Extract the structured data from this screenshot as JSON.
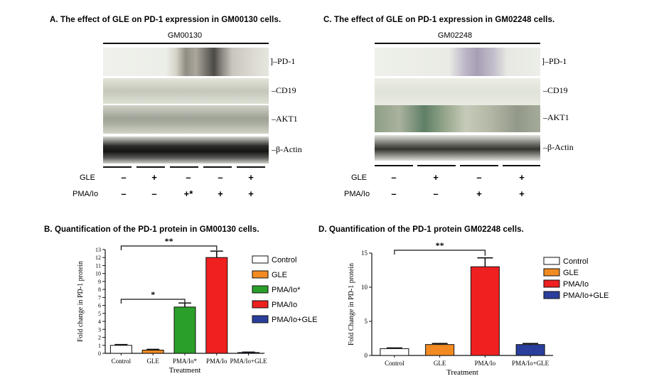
{
  "panels": {
    "a_title": "A. The effect of GLE on PD-1 expression in GM00130 cells.",
    "c_title": "C. The effect of GLE on PD-1 expression in GM02248 cells.",
    "b_title": "B. Quantification of the PD-1 protein in GM00130 cells.",
    "d_title": "D. Quantification of the PD-1 protein GM02248 cells."
  },
  "blot_a": {
    "cell_line": "GM00130",
    "bands": [
      "PD-1",
      "CD19",
      "AKT1",
      "β-Actin"
    ],
    "gle_label": "GLE",
    "pma_label": "PMA/Io",
    "gle_signs": [
      "–",
      "+",
      "–",
      "–",
      "+"
    ],
    "pma_signs": [
      "–",
      "–",
      "+*",
      "+",
      "+"
    ]
  },
  "blot_c": {
    "cell_line": "GM02248",
    "bands": [
      "PD-1",
      "CD19",
      "AKT1",
      "β-Actin"
    ],
    "gle_label": "GLE",
    "pma_label": "PMA/Io",
    "gle_signs": [
      "–",
      "+",
      "–",
      "+"
    ],
    "pma_signs": [
      "–",
      "–",
      "+",
      "+"
    ]
  },
  "colors": {
    "control": "#ffffff",
    "gle": "#f28a22",
    "pma_star": "#2aa02a",
    "pma": "#ee2020",
    "pma_gle": "#2a3f9c",
    "errorbar": "#111111"
  },
  "chart_data": [
    {
      "type": "bar",
      "title": "B. Quantification of the PD-1 protein in GM00130 cells.",
      "xlabel": "Treatment",
      "ylabel": "Fold change in PD-1 protein",
      "categories": [
        "Control",
        "GLE",
        "PMA/Io*",
        "PMA/Io",
        "PMA/Io+GLE"
      ],
      "values": [
        1.0,
        0.4,
        5.8,
        12.0,
        0.1
      ],
      "errors": [
        0.1,
        0.1,
        0.5,
        0.8,
        0.05
      ],
      "colors": [
        "#ffffff",
        "#f28a22",
        "#2aa02a",
        "#ee2020",
        "#2a3f9c"
      ],
      "ylim": [
        0,
        13
      ],
      "yticks": [
        "0",
        "1",
        "2",
        "3",
        "4",
        "5",
        "6",
        "7",
        "8",
        "9",
        "10",
        "11",
        "12",
        "13"
      ],
      "legend": [
        "Control",
        "GLE",
        "PMA/Io*",
        "PMA/Io",
        "PMA/Io+GLE"
      ],
      "legend_position": "right",
      "significance": [
        {
          "from": 0,
          "to": 2,
          "label": "*"
        },
        {
          "from": 0,
          "to": 3,
          "label": "**"
        }
      ]
    },
    {
      "type": "bar",
      "title": "D. Quantification of the PD-1 protein GM02248 cells.",
      "xlabel": "Treatment",
      "ylabel": "Fold Change in PD-1 protein",
      "categories": [
        "Control",
        "GLE",
        "PMA/Io",
        "PMA/Io+GLE"
      ],
      "values": [
        1.0,
        1.6,
        13.0,
        1.6
      ],
      "errors": [
        0.1,
        0.15,
        1.3,
        0.15
      ],
      "colors": [
        "#ffffff",
        "#f28a22",
        "#ee2020",
        "#2a3f9c"
      ],
      "ylim": [
        0,
        15
      ],
      "yticks": [
        "0",
        "5",
        "10",
        "15"
      ],
      "legend": [
        "Control",
        "GLE",
        "PMA/Io",
        "PMA/Io+GLE"
      ],
      "legend_position": "right",
      "significance": [
        {
          "from": 0,
          "to": 2,
          "label": "**"
        }
      ]
    }
  ]
}
